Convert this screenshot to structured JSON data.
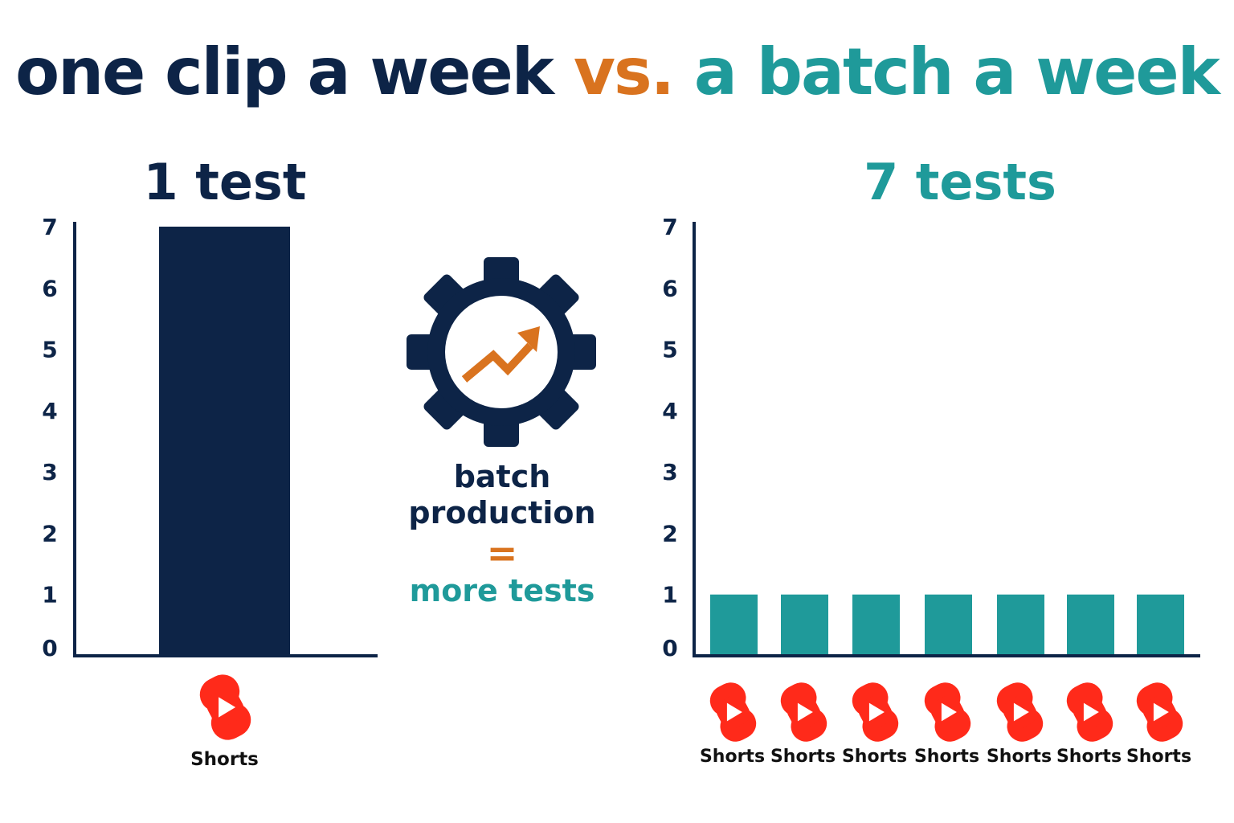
{
  "title": {
    "part1": "one clip a week",
    "part2": "vs.",
    "part3": "a batch a week"
  },
  "colors": {
    "navy": "#0d2447",
    "teal": "#1f9a9a",
    "orange": "#d9731f",
    "shorts_red": "#ff2a1a"
  },
  "center": {
    "icon": "gear-with-trend-arrow-icon",
    "line1": "batch",
    "line2": "production",
    "equals": "=",
    "line3": "more tests"
  },
  "chart_data": [
    {
      "type": "bar",
      "title": "1 test",
      "categories": [
        "Shorts"
      ],
      "values": [
        7
      ],
      "ylim": [
        0,
        7
      ],
      "yticks": [
        "0",
        "1",
        "2",
        "3",
        "4",
        "5",
        "6",
        "7"
      ],
      "bar_color": "#0d2447",
      "category_icon": "youtube-shorts-icon"
    },
    {
      "type": "bar",
      "title": "7 tests",
      "categories": [
        "Shorts",
        "Shorts",
        "Shorts",
        "Shorts",
        "Shorts",
        "Shorts",
        "Shorts"
      ],
      "values": [
        1,
        1,
        1,
        1,
        1,
        1,
        1
      ],
      "ylim": [
        0,
        7
      ],
      "yticks": [
        "0",
        "1",
        "2",
        "3",
        "4",
        "5",
        "6",
        "7"
      ],
      "bar_color": "#1f9a9a",
      "category_icon": "youtube-shorts-icon"
    }
  ]
}
